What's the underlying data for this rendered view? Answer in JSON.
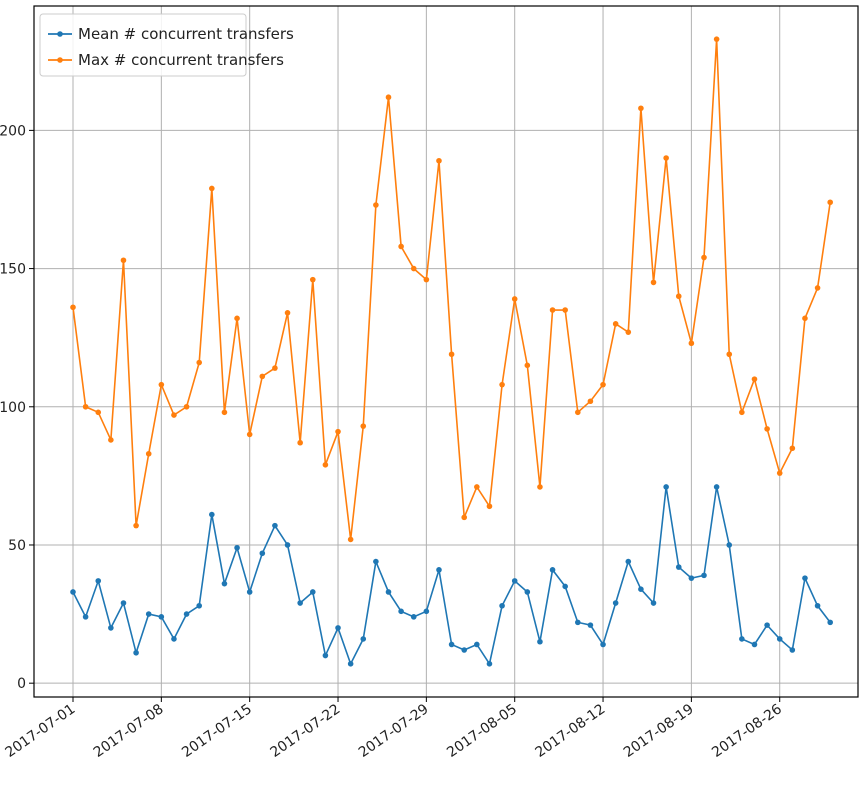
{
  "chart_data": {
    "type": "line",
    "title": "",
    "xlabel": "",
    "ylabel": "",
    "ylim": [
      -5,
      245
    ],
    "grid": true,
    "legend_position": "top-left",
    "x_tick_labels": [
      "2017-07-01",
      "2017-07-08",
      "2017-07-15",
      "2017-07-22",
      "2017-07-29",
      "2017-08-05",
      "2017-08-12",
      "2017-08-19",
      "2017-08-26"
    ],
    "y_tick_labels": [
      "0",
      "50",
      "100",
      "150",
      "200"
    ],
    "y_ticks": [
      0,
      50,
      100,
      150,
      200
    ],
    "x_dates": [
      "2017-07-01",
      "2017-07-02",
      "2017-07-03",
      "2017-07-04",
      "2017-07-05",
      "2017-07-06",
      "2017-07-07",
      "2017-07-08",
      "2017-07-09",
      "2017-07-10",
      "2017-07-11",
      "2017-07-12",
      "2017-07-13",
      "2017-07-14",
      "2017-07-15",
      "2017-07-16",
      "2017-07-17",
      "2017-07-18",
      "2017-07-19",
      "2017-07-20",
      "2017-07-21",
      "2017-07-22",
      "2017-07-23",
      "2017-07-24",
      "2017-07-25",
      "2017-07-26",
      "2017-07-27",
      "2017-07-28",
      "2017-07-29",
      "2017-07-30",
      "2017-07-31",
      "2017-08-01",
      "2017-08-02",
      "2017-08-03",
      "2017-08-04",
      "2017-08-05",
      "2017-08-06",
      "2017-08-07",
      "2017-08-08",
      "2017-08-09",
      "2017-08-10",
      "2017-08-11",
      "2017-08-12",
      "2017-08-13",
      "2017-08-14",
      "2017-08-15",
      "2017-08-16",
      "2017-08-17",
      "2017-08-18",
      "2017-08-19",
      "2017-08-20",
      "2017-08-21",
      "2017-08-22",
      "2017-08-23",
      "2017-08-24",
      "2017-08-25",
      "2017-08-26",
      "2017-08-27",
      "2017-08-28",
      "2017-08-29",
      "2017-08-30"
    ],
    "series": [
      {
        "name": "Mean # concurrent transfers",
        "color": "#1f77b4",
        "values": [
          33,
          24,
          37,
          20,
          29,
          11,
          25,
          24,
          16,
          25,
          28,
          61,
          36,
          49,
          33,
          47,
          57,
          50,
          29,
          33,
          10,
          20,
          7,
          16,
          44,
          33,
          26,
          24,
          26,
          41,
          14,
          12,
          14,
          7,
          28,
          37,
          33,
          15,
          41,
          35,
          22,
          21,
          14,
          29,
          44,
          34,
          29,
          71,
          42,
          38,
          39,
          71,
          50,
          16,
          14,
          21,
          16,
          12,
          38,
          28,
          22
        ]
      },
      {
        "name": "Max # concurrent transfers",
        "color": "#ff7f0e",
        "values": [
          136,
          100,
          98,
          88,
          153,
          57,
          83,
          108,
          97,
          100,
          116,
          179,
          98,
          132,
          90,
          111,
          114,
          134,
          87,
          146,
          79,
          91,
          52,
          93,
          173,
          212,
          158,
          150,
          146,
          189,
          119,
          60,
          71,
          64,
          108,
          139,
          115,
          71,
          135,
          135,
          98,
          102,
          108,
          130,
          127,
          208,
          145,
          190,
          140,
          123,
          154,
          233,
          119,
          98,
          110,
          92,
          76,
          85,
          132,
          143,
          174
        ]
      }
    ]
  }
}
